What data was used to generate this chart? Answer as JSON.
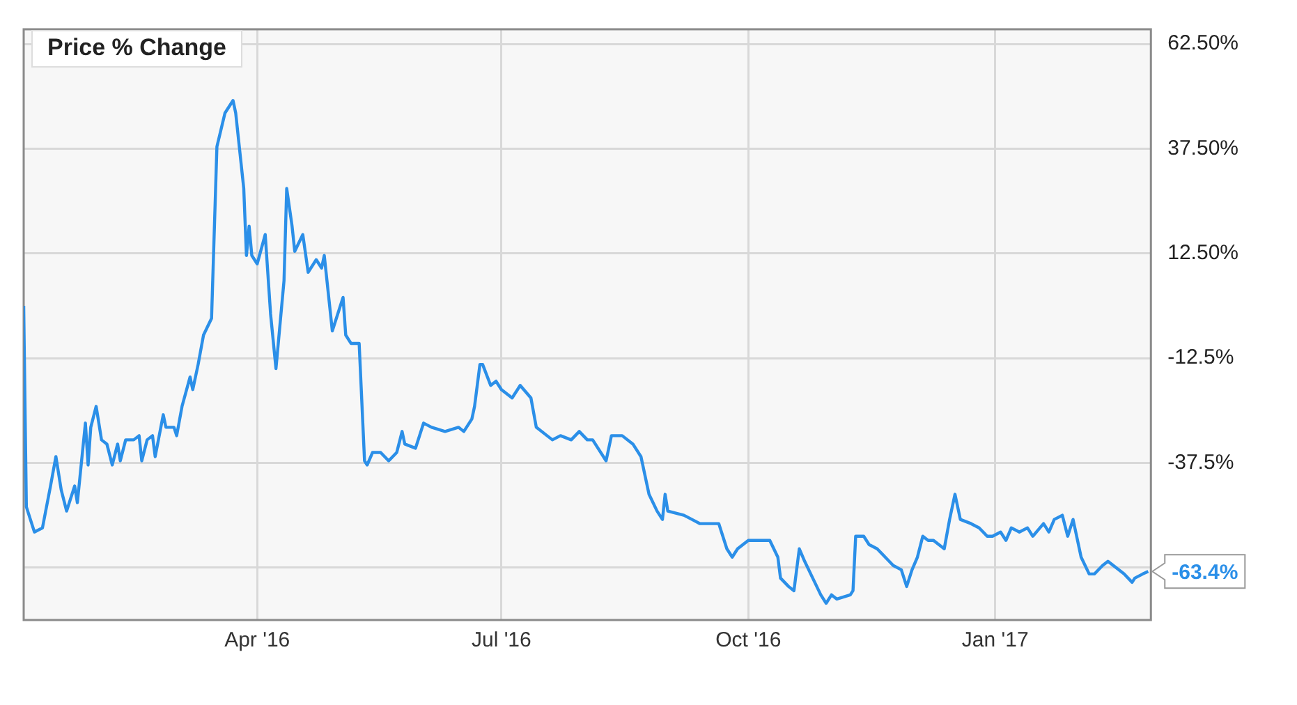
{
  "chart_data": {
    "type": "line",
    "title": "Price % Change",
    "x": [
      "2016-01-05",
      "2016-01-06",
      "2016-01-09",
      "2016-01-12",
      "2016-01-15",
      "2016-01-17",
      "2016-01-19",
      "2016-01-21",
      "2016-01-22",
      "2016-01-24",
      "2016-01-25",
      "2016-01-28",
      "2016-01-29",
      "2016-01-30",
      "2016-02-01",
      "2016-02-03",
      "2016-02-05",
      "2016-02-07",
      "2016-02-09",
      "2016-02-10",
      "2016-02-12",
      "2016-02-15",
      "2016-02-17",
      "2016-02-18",
      "2016-02-20",
      "2016-02-22",
      "2016-02-23",
      "2016-02-26",
      "2016-02-27",
      "2016-03-01",
      "2016-03-02",
      "2016-03-04",
      "2016-03-07",
      "2016-03-08",
      "2016-03-10",
      "2016-03-12",
      "2016-03-15",
      "2016-03-17",
      "2016-03-20",
      "2016-03-23",
      "2016-03-24",
      "2016-03-27",
      "2016-03-28",
      "2016-03-29",
      "2016-03-30",
      "2016-04-01",
      "2016-04-04",
      "2016-04-06",
      "2016-04-08",
      "2016-04-11",
      "2016-04-12",
      "2016-04-14",
      "2016-04-15",
      "2016-04-18",
      "2016-04-20",
      "2016-04-23",
      "2016-04-25",
      "2016-04-26",
      "2016-04-29",
      "2016-05-03",
      "2016-05-04",
      "2016-05-06",
      "2016-05-09",
      "2016-05-11",
      "2016-05-12",
      "2016-05-14",
      "2016-05-17",
      "2016-05-20",
      "2016-05-23",
      "2016-05-25",
      "2016-05-26",
      "2016-05-30",
      "2016-06-02",
      "2016-06-05",
      "2016-06-10",
      "2016-06-15",
      "2016-06-17",
      "2016-06-20",
      "2016-06-21",
      "2016-06-23",
      "2016-06-24",
      "2016-06-27",
      "2016-06-29",
      "2016-07-01",
      "2016-07-05",
      "2016-07-08",
      "2016-07-12",
      "2016-07-14",
      "2016-07-18",
      "2016-07-20",
      "2016-07-23",
      "2016-07-27",
      "2016-07-30",
      "2016-08-02",
      "2016-08-04",
      "2016-08-09",
      "2016-08-11",
      "2016-08-15",
      "2016-08-19",
      "2016-08-22",
      "2016-08-25",
      "2016-08-28",
      "2016-08-30",
      "2016-08-31",
      "2016-09-01",
      "2016-09-07",
      "2016-09-10",
      "2016-09-13",
      "2016-09-20",
      "2016-09-23",
      "2016-09-25",
      "2016-09-27",
      "2016-10-01",
      "2016-10-06",
      "2016-10-09",
      "2016-10-12",
      "2016-10-13",
      "2016-10-16",
      "2016-10-18",
      "2016-10-20",
      "2016-10-22",
      "2016-10-25",
      "2016-10-28",
      "2016-10-30",
      "2016-11-01",
      "2016-11-03",
      "2016-11-08",
      "2016-11-09",
      "2016-11-10",
      "2016-11-13",
      "2016-11-15",
      "2016-11-18",
      "2016-11-21",
      "2016-11-24",
      "2016-11-27",
      "2016-11-29",
      "2016-12-01",
      "2016-12-03",
      "2016-12-05",
      "2016-12-07",
      "2016-12-09",
      "2016-12-13",
      "2016-12-15",
      "2016-12-17",
      "2016-12-19",
      "2016-12-23",
      "2016-12-26",
      "2016-12-29",
      "2016-12-31",
      "2017-01-03",
      "2017-01-05",
      "2017-01-07",
      "2017-01-10",
      "2017-01-13",
      "2017-01-15",
      "2017-01-19",
      "2017-01-21",
      "2017-01-23",
      "2017-01-26",
      "2017-01-28",
      "2017-01-30",
      "2017-02-02",
      "2017-02-05",
      "2017-02-07",
      "2017-02-10",
      "2017-02-12",
      "2017-02-14",
      "2017-02-18",
      "2017-02-21",
      "2017-02-22",
      "2017-02-25",
      "2017-02-27"
    ],
    "series": [
      {
        "color": "#2b8fe8",
        "values": [
          0,
          -48,
          -54,
          -53,
          -43,
          -36,
          -44,
          -49,
          -47,
          -43,
          -47,
          -28,
          -38,
          -29,
          -24,
          -32,
          -33,
          -38,
          -33,
          -37,
          -32,
          -32,
          -31,
          -37,
          -32,
          -31,
          -36,
          -26,
          -29,
          -29,
          -31,
          -24,
          -17,
          -20,
          -14,
          -7,
          -3,
          38,
          46,
          49,
          46,
          28,
          12,
          19,
          12,
          10,
          17,
          -2,
          -15,
          6,
          28,
          19,
          13,
          17,
          8,
          11,
          9,
          12,
          -6,
          2,
          -7,
          -9,
          -9,
          -37,
          -38,
          -35,
          -35,
          -37,
          -35,
          -30,
          -33,
          -34,
          -28,
          -29,
          -30,
          -29,
          -30,
          -27,
          -24,
          -14,
          -14,
          -19,
          -18,
          -20,
          -22,
          -19,
          -22,
          -29,
          -31,
          -32,
          -31,
          -32,
          -30,
          -32,
          -32,
          -37,
          -31,
          -31,
          -33,
          -36,
          -45,
          -49,
          -51,
          -45,
          -49,
          -50,
          -51,
          -52,
          -52,
          -58,
          -60,
          -58,
          -56,
          -56,
          -56,
          -60,
          -65,
          -67,
          -68,
          -58,
          -61,
          -65,
          -69,
          -71,
          -69,
          -70,
          -69,
          -68,
          -55,
          -55,
          -57,
          -58,
          -60,
          -62,
          -63,
          -67,
          -63,
          -60,
          -55,
          -56,
          -56,
          -58,
          -51,
          -45,
          -51,
          -52,
          -53,
          -55,
          -55,
          -54,
          -56,
          -53,
          -54,
          -53,
          -55,
          -52,
          -54,
          -51,
          -50,
          -55,
          -51,
          -60,
          -64,
          -64,
          -62,
          -61,
          -62,
          -64,
          -66,
          -65,
          -64,
          -63.4
        ]
      }
    ],
    "xlim": [
      "2016-01-05",
      "2017-02-28"
    ],
    "xticks": [
      {
        "value": "2016-04-01",
        "label": "Apr '16"
      },
      {
        "value": "2016-07-01",
        "label": "Jul '16"
      },
      {
        "value": "2016-10-01",
        "label": "Oct '16"
      },
      {
        "value": "2017-01-01",
        "label": "Jan '17"
      }
    ],
    "ylim": [
      -75,
      66
    ],
    "yticks": [
      {
        "value": -62.5,
        "label": null
      },
      {
        "value": -37.5,
        "label": "-37.5%"
      },
      {
        "value": -12.5,
        "label": "-12.5%"
      },
      {
        "value": 12.5,
        "label": "12.50%"
      },
      {
        "value": 37.5,
        "label": "37.50%"
      },
      {
        "value": 62.5,
        "label": "62.50%"
      }
    ],
    "annotations": [
      {
        "text": "-63.4%",
        "x": "2017-02-27",
        "y": -63.4
      }
    ],
    "grid": true,
    "legend": false,
    "marker": "none",
    "line_style": "solid"
  }
}
